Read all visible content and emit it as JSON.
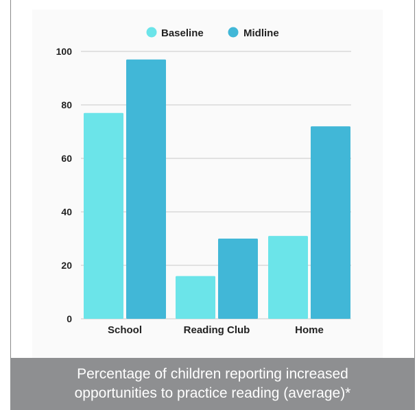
{
  "colors": {
    "baseline": "#6be4e9",
    "midline": "#41b7d7",
    "grid": "#c8c8c8",
    "caption_bg": "#8e8f91"
  },
  "caption": {
    "line1": "Percentage of children reporting increased",
    "line2": "opportunities to practice reading (average)*"
  },
  "chart_data": {
    "type": "bar",
    "title": "",
    "xlabel": "",
    "ylabel": "",
    "categories": [
      "School",
      "Reading Club",
      "Home"
    ],
    "series": [
      {
        "name": "Baseline",
        "values": [
          77,
          16,
          31
        ]
      },
      {
        "name": "Midline",
        "values": [
          97,
          30,
          72
        ]
      }
    ],
    "ylim": [
      0,
      100
    ],
    "yticks": [
      0,
      20,
      40,
      60,
      80,
      100
    ],
    "grid": true,
    "legend_position": "top-center"
  }
}
